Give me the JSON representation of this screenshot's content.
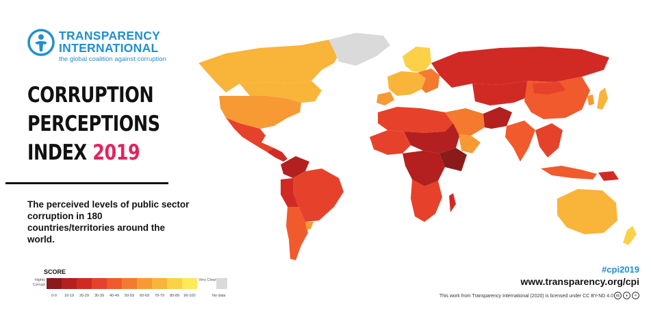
{
  "header": {
    "org_line1": "TRANSPARENCY",
    "org_line2": "INTERNATIONAL",
    "tagline": "the global coalition against corruption"
  },
  "title": {
    "line1": "CORRUPTION",
    "line2": "PERCEPTIONS",
    "line3_prefix": "INDEX",
    "year": "2019"
  },
  "description": "The perceived levels of public sector corruption in 180 countries/territories around the world.",
  "legend": {
    "title": "SCORE",
    "low_label": "Highly Corrupt",
    "high_label": "Very Clean",
    "ranges": [
      {
        "label": "0-9",
        "color": "#8b1a1a"
      },
      {
        "label": "10-19",
        "color": "#b3201f"
      },
      {
        "label": "20-29",
        "color": "#d12a24"
      },
      {
        "label": "30-39",
        "color": "#e6422b"
      },
      {
        "label": "40-49",
        "color": "#f05a2c"
      },
      {
        "label": "50-59",
        "color": "#f47a2f"
      },
      {
        "label": "60-69",
        "color": "#f79a33"
      },
      {
        "label": "70-79",
        "color": "#f9b43a"
      },
      {
        "label": "80-89",
        "color": "#fbd148"
      },
      {
        "label": "90-100",
        "color": "#fde95a"
      }
    ],
    "no_data_label": "No data",
    "no_data_color": "#dadada"
  },
  "footer": {
    "hashtag": "#cpi2019",
    "website": "www.transparency.org/cpi",
    "license": "This work from Transparency International (2020) is licensed under CC BY-ND 4.0",
    "cc_icons": [
      "cc",
      "by",
      "nd"
    ]
  }
}
